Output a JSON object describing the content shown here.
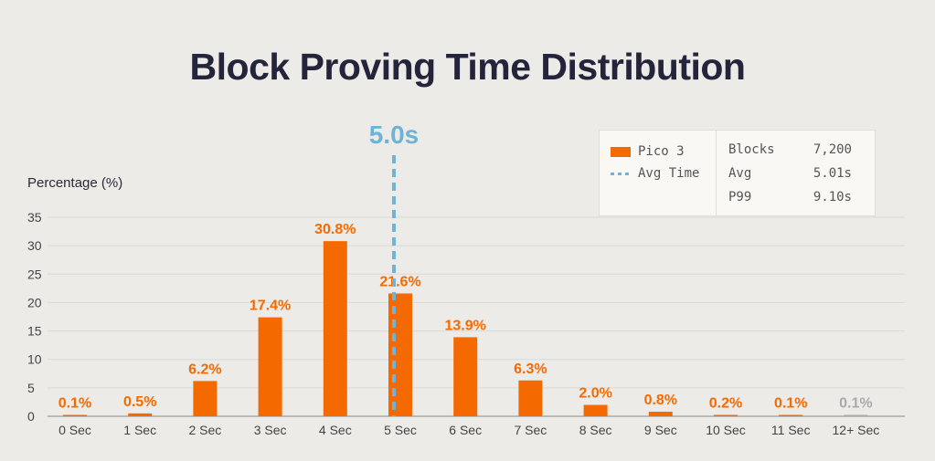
{
  "chart_data": {
    "type": "bar",
    "title": "Block Proving Time Distribution",
    "ylabel": "Percentage (%)",
    "xlabel": "",
    "ylim": [
      0,
      35
    ],
    "yticks": [
      0,
      5,
      10,
      15,
      20,
      25,
      30,
      35
    ],
    "grid": true,
    "categories": [
      "0 Sec",
      "1 Sec",
      "2 Sec",
      "3 Sec",
      "4 Sec",
      "5 Sec",
      "6 Sec",
      "7 Sec",
      "8 Sec",
      "9 Sec",
      "10 Sec",
      "11 Sec",
      "12+ Sec"
    ],
    "series": [
      {
        "name": "Pico 3",
        "color": "#f56a00",
        "values": [
          0.1,
          0.5,
          6.2,
          17.4,
          30.8,
          21.6,
          13.9,
          6.3,
          2.0,
          0.8,
          0.2,
          0.1,
          0.1
        ],
        "labels": [
          "0.1%",
          "0.5%",
          "6.2%",
          "17.4%",
          "30.8%",
          "21.6%",
          "13.9%",
          "6.3%",
          "2.0%",
          "0.8%",
          "0.2%",
          "0.1%",
          "0.1%"
        ]
      }
    ],
    "muted_color": "#aaaaaa",
    "avg_line": {
      "name": "Avg Time",
      "value": 5.0,
      "label": "5.0s",
      "color": "#6fb3d6"
    }
  },
  "legend": {
    "series_label": "Pico 3",
    "avg_label": "Avg Time",
    "stats": [
      {
        "label": "Blocks",
        "value": "7,200"
      },
      {
        "label": "Avg",
        "value": "5.01s"
      },
      {
        "label": "P99",
        "value": "9.10s"
      }
    ]
  }
}
